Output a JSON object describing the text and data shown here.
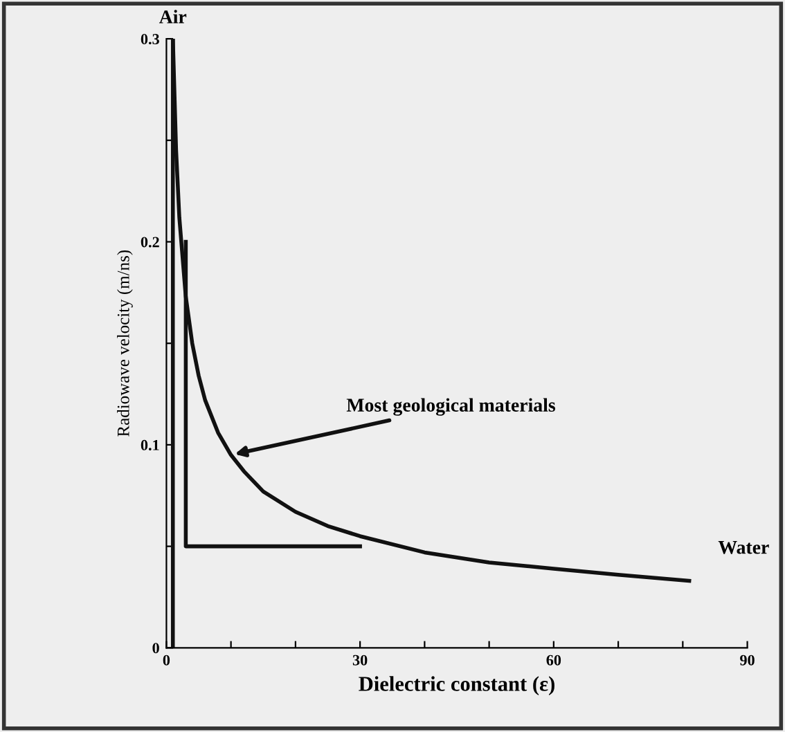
{
  "chart_data": {
    "type": "line",
    "xlabel": "Dielectric constant (ε)",
    "ylabel": "Radiowave velocity (m/ns)",
    "series": [
      {
        "color": "#111111",
        "x": [
          1,
          1.5,
          2,
          3,
          4,
          5,
          6,
          8,
          10,
          12,
          15,
          20,
          25,
          30,
          40,
          50,
          60,
          70,
          81
        ],
        "values": [
          0.3,
          0.245,
          0.212,
          0.173,
          0.15,
          0.134,
          0.122,
          0.106,
          0.095,
          0.087,
          0.077,
          0.067,
          0.06,
          0.055,
          0.047,
          0.042,
          0.039,
          0.036,
          0.033
        ]
      },
      {
        "color": "#111111",
        "x": [
          1,
          1
        ],
        "values": [
          0,
          0.3
        ]
      },
      {
        "color": "#111111",
        "x": [
          3,
          3,
          30
        ],
        "values": [
          0.2,
          0.05,
          0.05
        ]
      }
    ],
    "xlim": [
      0,
      90
    ],
    "ylim": [
      0,
      0.3
    ],
    "xticks": [
      0,
      {
        "value": 10,
        "label": null
      },
      {
        "value": 20,
        "label": null
      },
      30,
      {
        "value": 40,
        "label": null
      },
      {
        "value": 50,
        "label": null
      },
      60,
      {
        "value": 70,
        "label": null
      },
      {
        "value": 80,
        "label": null
      },
      90
    ],
    "yticks": [
      0,
      {
        "value": 0.05,
        "label": null
      },
      0.1,
      {
        "value": 0.15,
        "label": null
      },
      0.2,
      {
        "value": 0.25,
        "label": null
      },
      0.3
    ],
    "grid": false,
    "legend": false,
    "marker": "none",
    "line_style": "solid",
    "annotations": [
      {
        "text": "Air",
        "x": 1,
        "y": 0.3
      },
      {
        "text": "Most geological materials",
        "x": 10,
        "y": 0.095
      },
      {
        "text": "Water",
        "x": 81,
        "y": 0.033
      }
    ]
  }
}
